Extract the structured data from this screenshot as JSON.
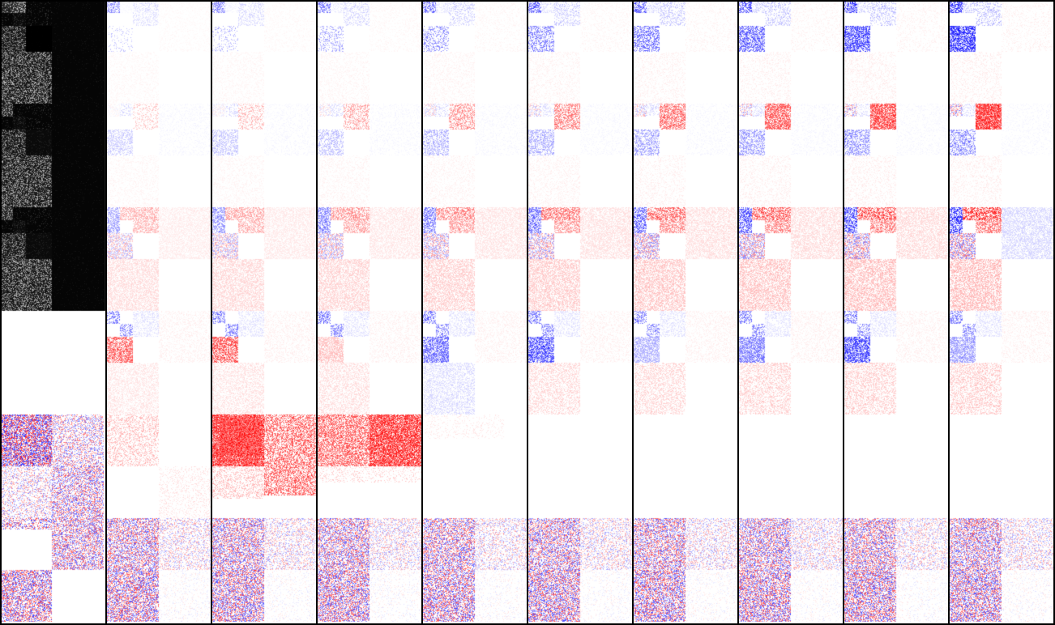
{
  "figure": {
    "panel_count": 10,
    "row_band_count": 6,
    "colors": {
      "frame": "#000000",
      "background": "#ffffff",
      "positive": "#ff0000",
      "negative": "#0000ff",
      "magnitude_map": "#ffffff",
      "magnitude_bg": "#000000"
    },
    "panels": [
      {
        "kind": "magnitude"
      },
      {
        "kind": "signed",
        "step": 1
      },
      {
        "kind": "signed",
        "step": 2
      },
      {
        "kind": "signed",
        "step": 3
      },
      {
        "kind": "signed",
        "step": 4
      },
      {
        "kind": "signed",
        "step": 5
      },
      {
        "kind": "signed",
        "step": 6
      },
      {
        "kind": "signed",
        "step": 7
      },
      {
        "kind": "signed",
        "step": 8
      },
      {
        "kind": "signed",
        "step": 9
      }
    ]
  }
}
